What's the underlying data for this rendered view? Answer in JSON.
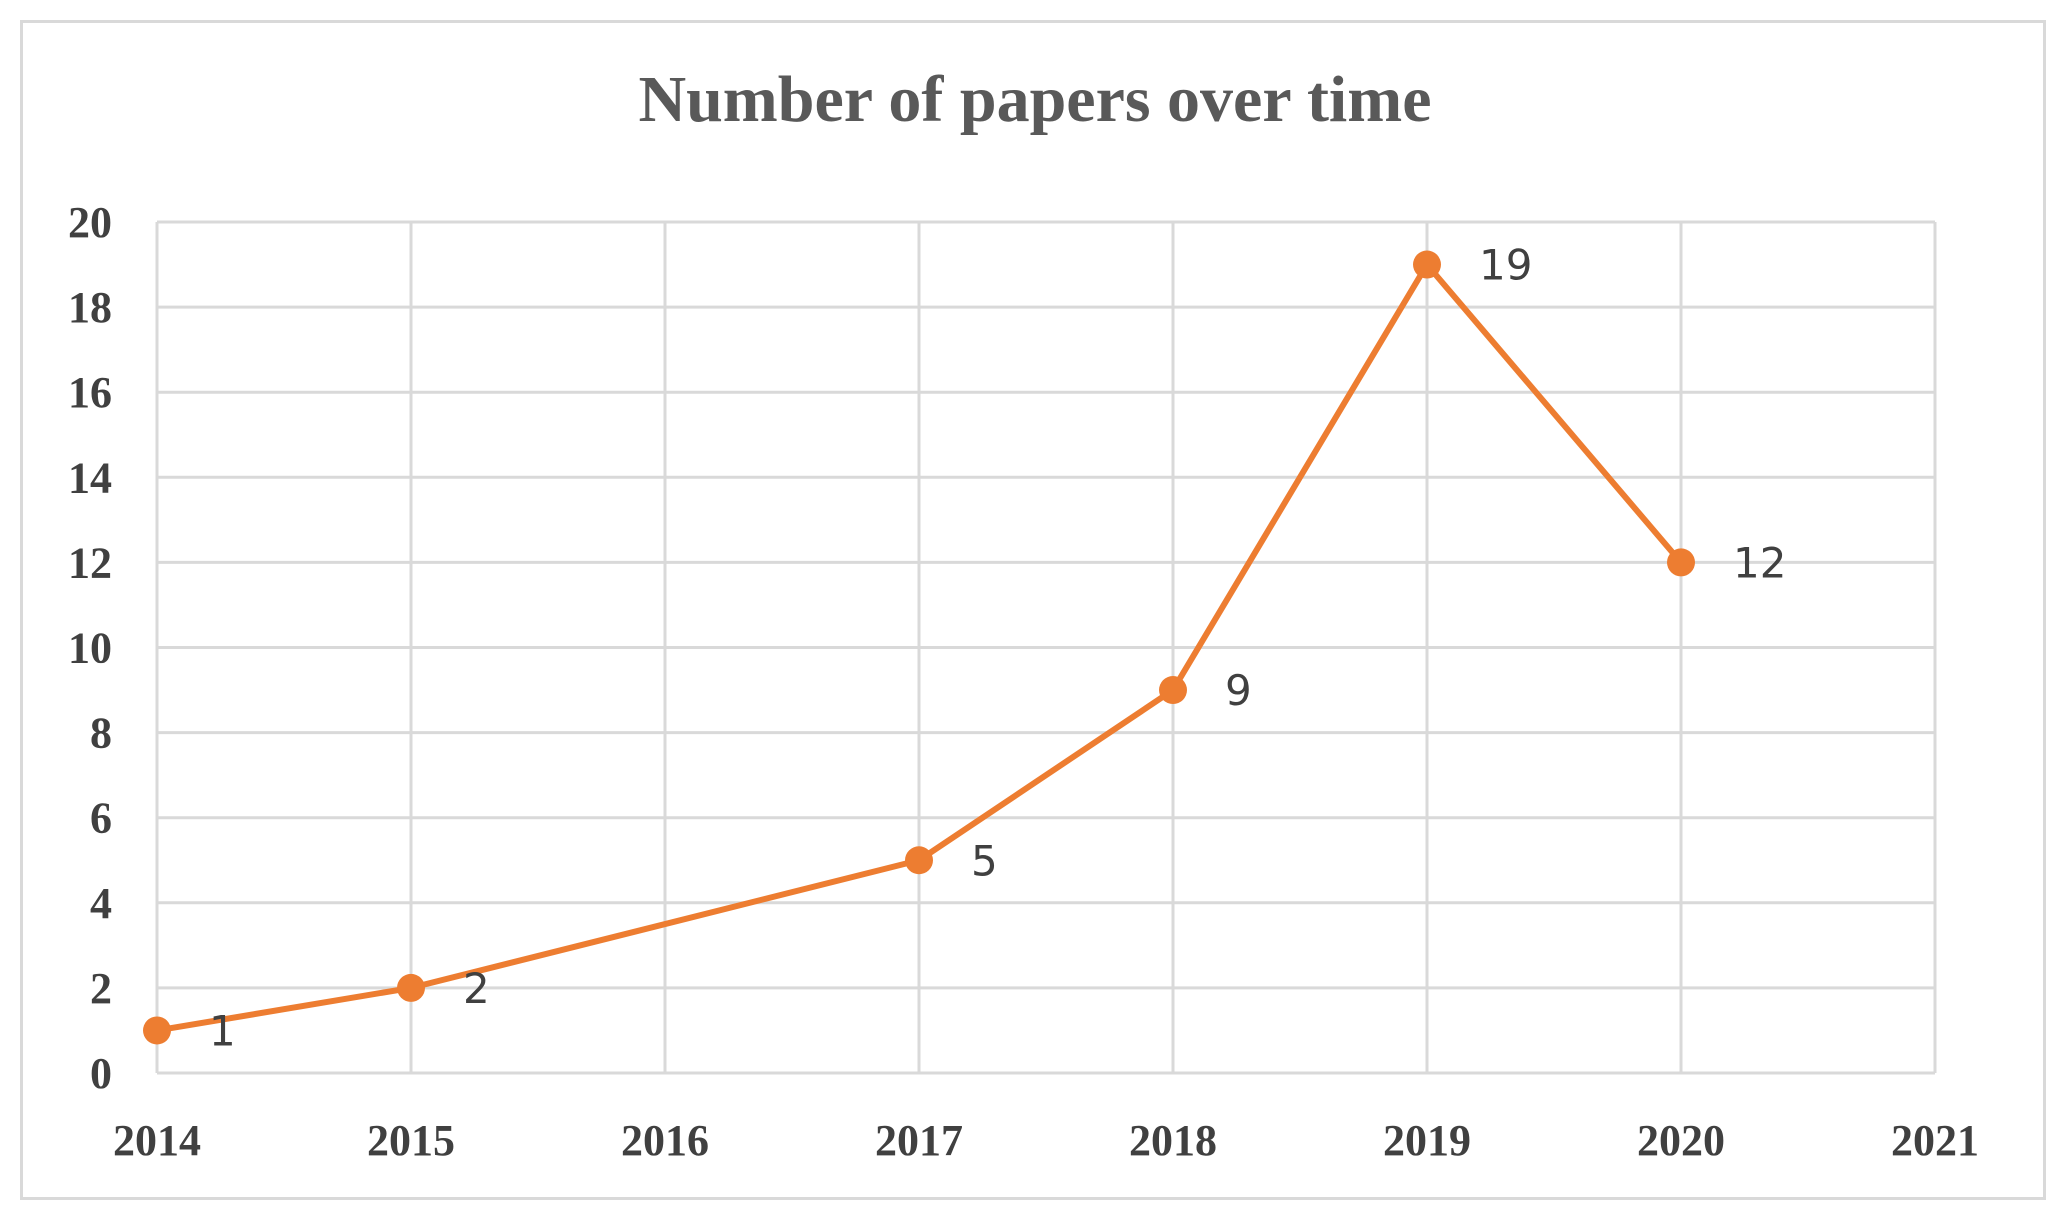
{
  "chart_data": {
    "type": "line",
    "title": "Number of papers over time",
    "x": [
      2014,
      2015,
      2017,
      2018,
      2019,
      2020
    ],
    "y": [
      1,
      2,
      5,
      9,
      19,
      12
    ],
    "data_labels": [
      "1",
      "2",
      "5",
      "9",
      "19",
      "12"
    ],
    "xlim": [
      2014,
      2021
    ],
    "ylim": [
      0,
      20
    ],
    "x_ticks": [
      "2014",
      "2015",
      "2016",
      "2017",
      "2018",
      "2019",
      "2020",
      "2021"
    ],
    "y_ticks": [
      "0",
      "2",
      "4",
      "6",
      "8",
      "10",
      "12",
      "14",
      "16",
      "18",
      "20"
    ],
    "xlabel": "",
    "ylabel": "",
    "grid": true,
    "legend": "none",
    "series_color": "#ED7D31",
    "grid_color": "#d9d9d9"
  }
}
